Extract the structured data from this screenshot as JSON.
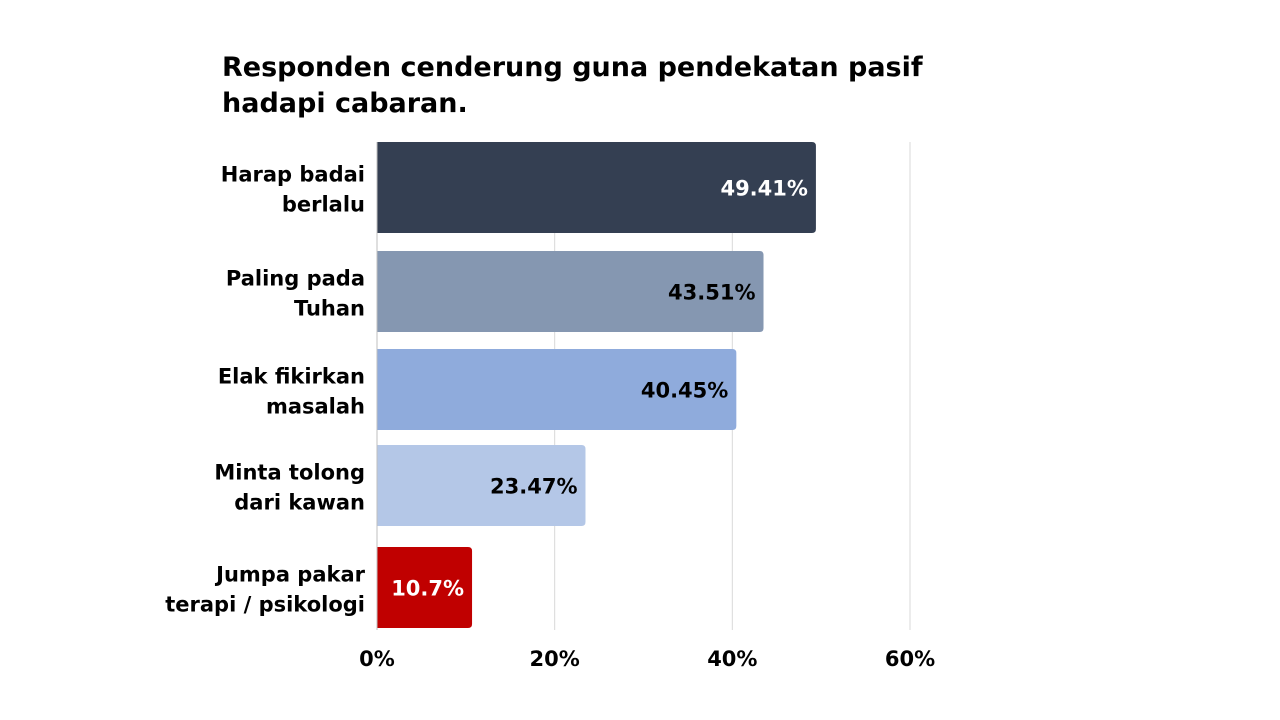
{
  "chart_data": {
    "type": "bar",
    "orientation": "horizontal",
    "title_lines": [
      "Responden cenderung guna pendekatan pasif",
      "hadapi cabaran."
    ],
    "categories": [
      [
        "Harap badai",
        "berlalu"
      ],
      [
        "Paling pada",
        "Tuhan"
      ],
      [
        "Elak fikirkan",
        "masalah"
      ],
      [
        "Minta tolong",
        "dari kawan"
      ],
      [
        "Jumpa pakar",
        "terapi / psikologi"
      ]
    ],
    "values": [
      49.41,
      43.51,
      40.45,
      23.47,
      10.7
    ],
    "value_labels": [
      "49.41%",
      "43.51%",
      "40.45%",
      "23.47%",
      "10.7%"
    ],
    "colors": [
      "#343f52",
      "#8597b1",
      "#8fabdc",
      "#b4c7e7",
      "#c00000"
    ],
    "label_colors": [
      "#ffffff",
      "#000000",
      "#000000",
      "#000000",
      "#ffffff"
    ],
    "x_ticks": [
      0,
      20,
      40,
      60
    ],
    "x_tick_labels": [
      "0%",
      "20%",
      "40%",
      "60%"
    ],
    "xlim": [
      0,
      60
    ],
    "grid": true,
    "legend": "none"
  }
}
